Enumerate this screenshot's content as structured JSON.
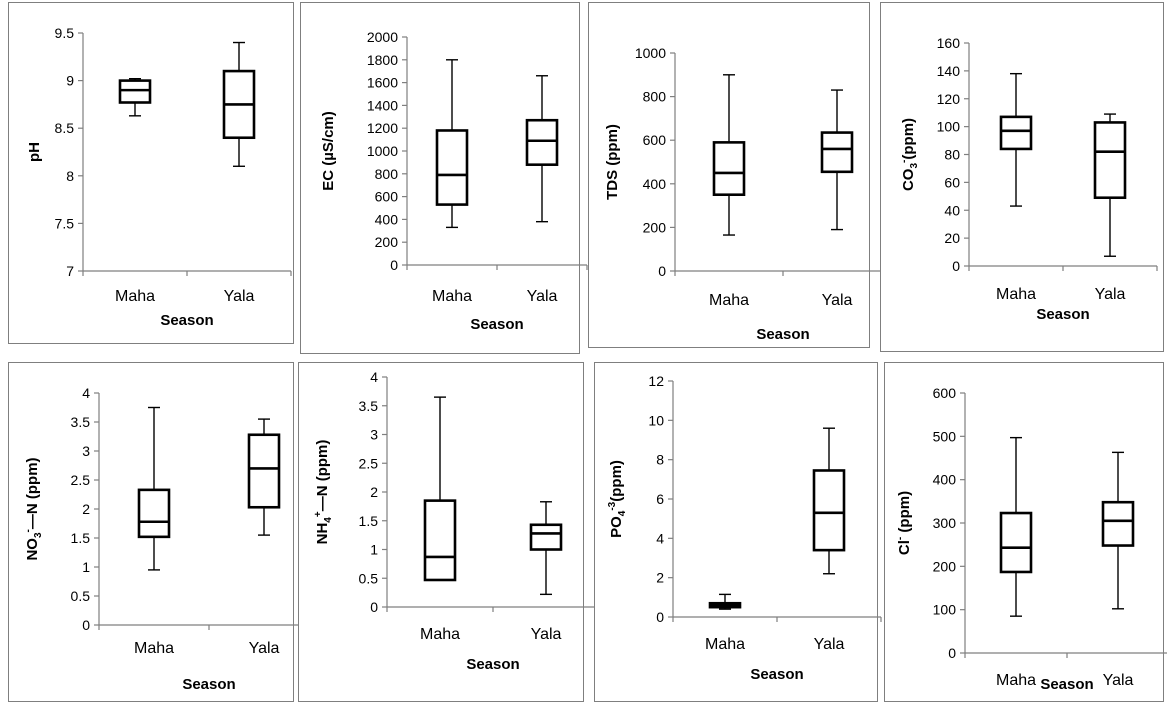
{
  "chart_data": [
    {
      "type": "box",
      "ylabel": "pH",
      "xlabel": "Season",
      "ylim": [
        7,
        9.5
      ],
      "yticks": [
        "7",
        "7.5",
        "8",
        "8.5",
        "9",
        "9.5"
      ],
      "categories": [
        "Maha",
        "Yala"
      ],
      "boxes": [
        {
          "min": 8.63,
          "q1": 8.77,
          "median": 8.9,
          "q3": 9.0,
          "max": 9.02
        },
        {
          "min": 8.1,
          "q1": 8.4,
          "median": 8.75,
          "q3": 9.1,
          "max": 9.4
        }
      ]
    },
    {
      "type": "box",
      "ylabel": "EC (µS/cm)",
      "xlabel": "Season",
      "ylim": [
        0,
        2000
      ],
      "yticks": [
        "0",
        "200",
        "400",
        "600",
        "800",
        "1000",
        "1200",
        "1400",
        "1600",
        "1800",
        "2000"
      ],
      "categories": [
        "Maha",
        "Yala"
      ],
      "boxes": [
        {
          "min": 330,
          "q1": 530,
          "median": 790,
          "q3": 1180,
          "max": 1800
        },
        {
          "min": 380,
          "q1": 880,
          "median": 1090,
          "q3": 1270,
          "max": 1660
        }
      ]
    },
    {
      "type": "box",
      "ylabel": "TDS (ppm)",
      "xlabel": "Season",
      "ylim": [
        0,
        1000
      ],
      "yticks": [
        "0",
        "200",
        "400",
        "600",
        "800",
        "1000"
      ],
      "categories": [
        "Maha",
        "Yala"
      ],
      "boxes": [
        {
          "min": 165,
          "q1": 350,
          "median": 450,
          "q3": 590,
          "max": 900
        },
        {
          "min": 190,
          "q1": 455,
          "median": 560,
          "q3": 635,
          "max": 830
        }
      ]
    },
    {
      "type": "box",
      "ylabel": "CO3-(ppm)",
      "ylabel_parts": [
        {
          "t": "CO"
        },
        {
          "t": "3",
          "sub": true
        },
        {
          "t": "-",
          "sup": true
        },
        {
          "t": "(ppm)"
        }
      ],
      "xlabel": "Season",
      "ylim": [
        0,
        160
      ],
      "yticks": [
        "0",
        "20",
        "40",
        "60",
        "80",
        "100",
        "120",
        "140",
        "160"
      ],
      "categories": [
        "Maha",
        "Yala"
      ],
      "boxes": [
        {
          "min": 43,
          "q1": 84,
          "median": 97,
          "q3": 107,
          "max": 138
        },
        {
          "min": 7,
          "q1": 49,
          "median": 82,
          "q3": 103,
          "max": 109
        }
      ]
    },
    {
      "type": "box",
      "ylabel": "NO3-—N (ppm)",
      "ylabel_parts": [
        {
          "t": "NO"
        },
        {
          "t": "3",
          "sub": true
        },
        {
          "t": "-",
          "sup": true
        },
        {
          "t": "—N (ppm)"
        }
      ],
      "xlabel": "Season",
      "ylim": [
        0,
        4
      ],
      "yticks": [
        "0",
        "0.5",
        "1",
        "1.5",
        "2",
        "2.5",
        "3",
        "3.5",
        "4"
      ],
      "categories": [
        "Maha",
        "Yala"
      ],
      "boxes": [
        {
          "min": 0.95,
          "q1": 1.52,
          "median": 1.78,
          "q3": 2.33,
          "max": 3.75
        },
        {
          "min": 1.55,
          "q1": 2.03,
          "median": 2.7,
          "q3": 3.28,
          "max": 3.55
        }
      ]
    },
    {
      "type": "box",
      "ylabel": "NH4+—N (ppm)",
      "ylabel_parts": [
        {
          "t": "NH"
        },
        {
          "t": "4",
          "sub": true
        },
        {
          "t": "+",
          "sup": true
        },
        {
          "t": "—N (ppm)"
        }
      ],
      "xlabel": "Season",
      "ylim": [
        0,
        4
      ],
      "yticks": [
        "0",
        "0.5",
        "1",
        "1.5",
        "2",
        "2.5",
        "3",
        "3.5",
        "4"
      ],
      "categories": [
        "Maha",
        "Yala"
      ],
      "boxes": [
        {
          "min": 0.47,
          "q1": 0.47,
          "median": 0.87,
          "q3": 1.85,
          "max": 3.65
        },
        {
          "min": 0.22,
          "q1": 1.0,
          "median": 1.28,
          "q3": 1.43,
          "max": 1.83
        }
      ]
    },
    {
      "type": "box",
      "ylabel": "PO4-3(ppm)",
      "ylabel_parts": [
        {
          "t": "PO"
        },
        {
          "t": "4",
          "sub": true
        },
        {
          "t": "-3",
          "sup": true
        },
        {
          "t": "(ppm)"
        }
      ],
      "xlabel": "Season",
      "ylim": [
        0,
        12
      ],
      "yticks": [
        "0",
        "2",
        "4",
        "6",
        "8",
        "10",
        "12"
      ],
      "categories": [
        "Maha",
        "Yala"
      ],
      "boxes": [
        {
          "min": 0.4,
          "q1": 0.5,
          "median": 0.6,
          "q3": 0.7,
          "max": 1.15
        },
        {
          "min": 2.2,
          "q1": 3.4,
          "median": 5.3,
          "q3": 7.45,
          "max": 9.6
        }
      ]
    },
    {
      "type": "box",
      "ylabel": "Cl- (ppm)",
      "ylabel_parts": [
        {
          "t": "Cl"
        },
        {
          "t": "-",
          "sup": true
        },
        {
          "t": " (ppm)"
        }
      ],
      "xlabel": "Season",
      "ylim": [
        0,
        600
      ],
      "yticks": [
        "0",
        "100",
        "200",
        "300",
        "400",
        "500",
        "600"
      ],
      "categories": [
        "Maha",
        "Yala"
      ],
      "boxes": [
        {
          "min": 85,
          "q1": 187,
          "median": 243,
          "q3": 323,
          "max": 497
        },
        {
          "min": 102,
          "q1": 248,
          "median": 305,
          "q3": 348,
          "max": 463
        }
      ]
    }
  ]
}
